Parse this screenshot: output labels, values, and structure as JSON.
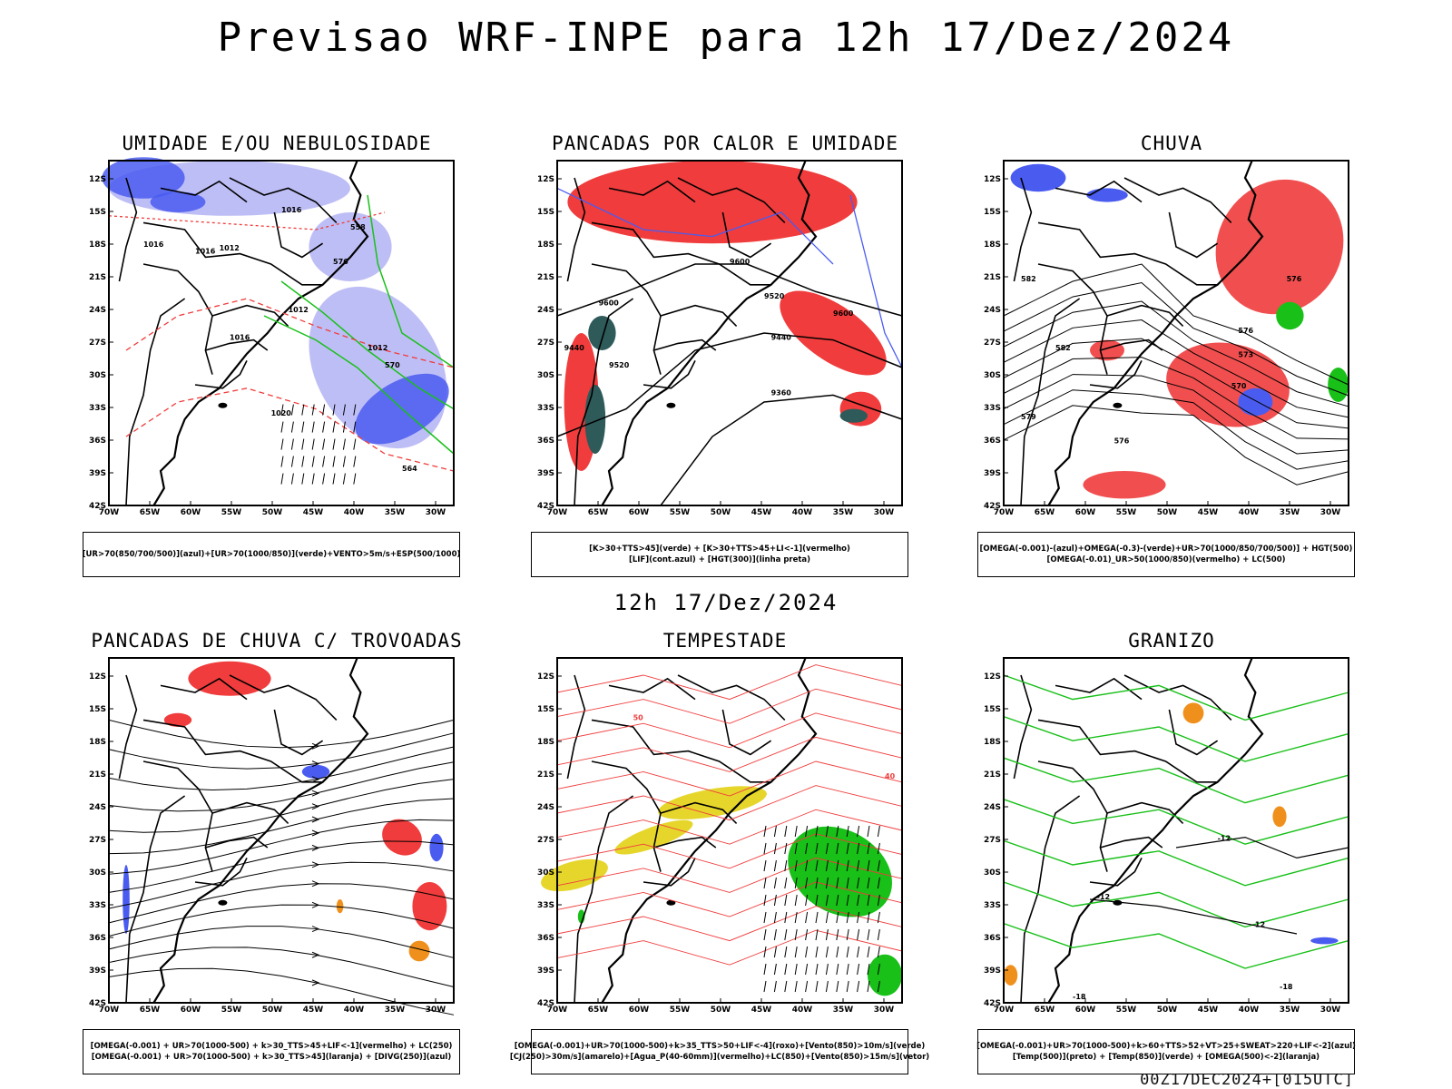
{
  "header": {
    "title": "Previsao WRF-INPE  para 12h 17/Dez/2024"
  },
  "middle": {
    "subtitle": "12h 17/Dez/2024"
  },
  "footer": {
    "run": "00Z17DEC2024+[015UTC]"
  },
  "axes": {
    "lat_ticks": [
      "12S",
      "15S",
      "18S",
      "21S",
      "24S",
      "27S",
      "30S",
      "33S",
      "36S",
      "39S",
      "42S"
    ],
    "lon_ticks": [
      "70W",
      "65W",
      "60W",
      "55W",
      "50W",
      "45W",
      "40W",
      "35W",
      "30W"
    ]
  },
  "colors": {
    "blue": "#4a5cf0",
    "lightblue": "#b7b7f5",
    "green": "#18c018",
    "red": "#f03c3c",
    "teal": "#2e5a5a",
    "yellow": "#e6d62c",
    "orange": "#f0901c"
  },
  "panels": [
    {
      "id": "umidade",
      "title": "UMIDADE E/OU NEBULOSIDADE",
      "legend": [
        "[UR>70(850/700/500)](azul)+[UR>70(1000/850)](verde)+VENTO>5m/s+ESP(500/1000)"
      ],
      "contour_labels": [
        "1016",
        "1016",
        "1012",
        "1016",
        "1012",
        "1016",
        "1020",
        "576",
        "570",
        "564",
        "558",
        "1012"
      ]
    },
    {
      "id": "pancadas-calor",
      "title": "PANCADAS POR CALOR E UMIDADE",
      "legend": [
        "[K>30+TTS>45](verde) + [K>30+TTS>45+LI<-1](vermelho)",
        "[LIF](cont.azul) + [HGT(300)](linha preta)"
      ],
      "contour_labels": [
        "9600",
        "9600",
        "9520",
        "9440",
        "9520",
        "9440",
        "9360",
        "9600"
      ]
    },
    {
      "id": "chuva",
      "title": "CHUVA",
      "legend": [
        "[OMEGA(-0.001)-(azul)+OMEGA(-0.3)-(verde)+UR>70(1000/850/700/500)] + HGT(500)",
        "[OMEGA(-0.01)_UR>50(1000/850)(vermelho) + LC(500)"
      ],
      "contour_labels": [
        "582",
        "582",
        "576",
        "576",
        "573",
        "570",
        "576",
        "579"
      ]
    },
    {
      "id": "trovoadas",
      "title": "PANCADAS DE CHUVA C/ TROVOADAS",
      "legend": [
        "[OMEGA(-0.001) + UR>70(1000-500) + k>30_TTS>45+LIF<-1](vermelho) + LC(250)",
        "[OMEGA(-0.001) + UR>70(1000-500) + k>30_TTS>45](laranja) + [DIVG(250)](azul)"
      ],
      "contour_labels": []
    },
    {
      "id": "tempestade",
      "title": "TEMPESTADE",
      "legend": [
        "[OMEGA(-0.001)+UR>70(1000-500)+k>35_TTS>50+LIF<-4](roxo)+[Vento(850)>10m/s](verde)",
        "[CJ(250)>30m/s](amarelo)+[Agua_P(40-60mm)](vermelho)+LC(850)+[Vento(850)>15m/s](vetor)"
      ],
      "contour_labels": [
        "50",
        "40"
      ]
    },
    {
      "id": "granizo",
      "title": "GRANIZO",
      "legend": [
        "[OMEGA(-0.001)+UR>70(1000-500)+k>60+TTS>52+VT>25+SWEAT>220+LIF<-2](azul)",
        "[Temp(500)](preto) + [Temp(850)](verde) + [OMEGA(500)<-2](laranja)"
      ],
      "contour_labels": [
        "-12",
        "-12",
        "-12",
        "-18",
        "-18"
      ]
    }
  ]
}
